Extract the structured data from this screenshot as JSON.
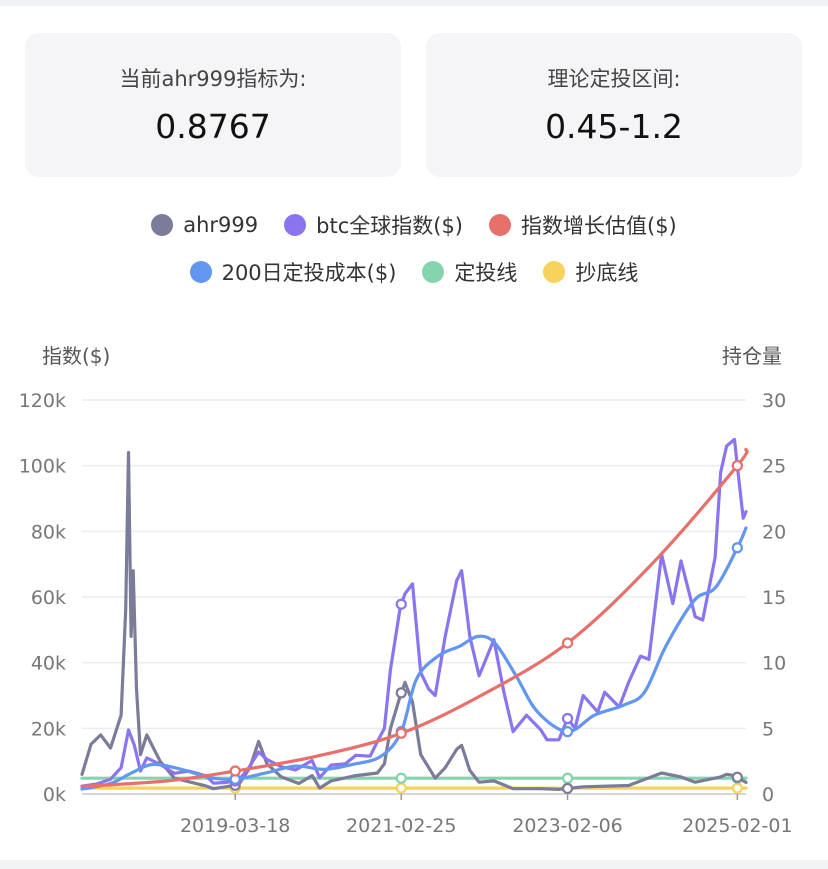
{
  "cards": {
    "index_label": "当前ahr999指标为:",
    "index_value": "0.8767",
    "range_label": "理论定投区间:",
    "range_value": "0.45-1.2"
  },
  "legend": {
    "row1": [
      {
        "label": "ahr999",
        "color": "#7b7b9a"
      },
      {
        "label": "btc全球指数($)",
        "color": "#8a74ef"
      },
      {
        "label": "指数增长估值($)",
        "color": "#e8706b"
      }
    ],
    "row2": [
      {
        "label": "200日定投成本($)",
        "color": "#6296f0"
      },
      {
        "label": "定投线",
        "color": "#86d4ae"
      },
      {
        "label": "抄底线",
        "color": "#f5d35c"
      }
    ]
  },
  "chart_data": {
    "type": "line",
    "left_axis_title": "指数($)",
    "right_axis_title": "持仓量",
    "left_ticks": [
      "0k",
      "20k",
      "40k",
      "60k",
      "80k",
      "100k",
      "120k"
    ],
    "right_ticks": [
      "0",
      "5",
      "10",
      "15",
      "20",
      "25",
      "30"
    ],
    "ylim_left": [
      0,
      120000
    ],
    "ylim_right": [
      0,
      30
    ],
    "x_ticks": [
      "2019-03-18",
      "2021-02-25",
      "2023-02-06",
      "2025-02-01"
    ],
    "x_range": [
      "2017-06-01",
      "2025-03-10"
    ],
    "grid": true,
    "series": [
      {
        "name": "btc全球指数($)",
        "axis": "left",
        "color": "#8a74ef",
        "points": [
          [
            "2017-06-01",
            2400
          ],
          [
            "2017-08-01",
            3000
          ],
          [
            "2017-10-01",
            4500
          ],
          [
            "2017-11-15",
            8000
          ],
          [
            "2017-12-17",
            19500
          ],
          [
            "2018-01-10",
            15000
          ],
          [
            "2018-02-06",
            7000
          ],
          [
            "2018-03-05",
            11000
          ],
          [
            "2018-05-01",
            9000
          ],
          [
            "2018-07-01",
            6300
          ],
          [
            "2018-09-01",
            7000
          ],
          [
            "2018-11-15",
            5500
          ],
          [
            "2018-12-15",
            3300
          ],
          [
            "2019-02-01",
            3500
          ],
          [
            "2019-04-01",
            4100
          ],
          [
            "2019-05-15",
            8000
          ],
          [
            "2019-06-26",
            12800
          ],
          [
            "2019-08-01",
            10500
          ],
          [
            "2019-10-01",
            8300
          ],
          [
            "2019-12-01",
            7300
          ],
          [
            "2020-02-10",
            10200
          ],
          [
            "2020-03-13",
            5000
          ],
          [
            "2020-05-01",
            8800
          ],
          [
            "2020-07-01",
            9200
          ],
          [
            "2020-08-15",
            11800
          ],
          [
            "2020-10-15",
            11500
          ],
          [
            "2020-11-15",
            16000
          ],
          [
            "2020-12-15",
            20000
          ],
          [
            "2021-01-10",
            38000
          ],
          [
            "2021-02-21",
            57000
          ],
          [
            "2021-03-13",
            61000
          ],
          [
            "2021-04-14",
            64000
          ],
          [
            "2021-05-19",
            37000
          ],
          [
            "2021-06-22",
            32000
          ],
          [
            "2021-07-20",
            30000
          ],
          [
            "2021-09-01",
            48000
          ],
          [
            "2021-10-20",
            65000
          ],
          [
            "2021-11-10",
            68000
          ],
          [
            "2021-12-15",
            48000
          ],
          [
            "2022-01-24",
            36000
          ],
          [
            "2022-03-28",
            47000
          ],
          [
            "2022-05-10",
            31000
          ],
          [
            "2022-06-18",
            19000
          ],
          [
            "2022-08-15",
            24000
          ],
          [
            "2022-10-15",
            19500
          ],
          [
            "2022-11-10",
            16500
          ],
          [
            "2022-12-31",
            16500
          ],
          [
            "2023-02-06",
            23000
          ],
          [
            "2023-03-10",
            20000
          ],
          [
            "2023-04-14",
            30000
          ],
          [
            "2023-06-15",
            25000
          ],
          [
            "2023-07-15",
            31000
          ],
          [
            "2023-09-15",
            26500
          ],
          [
            "2023-10-25",
            34000
          ],
          [
            "2023-12-15",
            42000
          ],
          [
            "2024-01-20",
            41000
          ],
          [
            "2024-03-14",
            73000
          ],
          [
            "2024-05-01",
            58000
          ],
          [
            "2024-06-05",
            71000
          ],
          [
            "2024-08-05",
            54000
          ],
          [
            "2024-09-06",
            53000
          ],
          [
            "2024-10-29",
            72000
          ],
          [
            "2024-11-22",
            98000
          ],
          [
            "2024-12-17",
            106000
          ],
          [
            "2025-01-20",
            108000
          ],
          [
            "2025-02-01",
            100000
          ],
          [
            "2025-02-26",
            84000
          ],
          [
            "2025-03-10",
            86000
          ]
        ]
      },
      {
        "name": "ahr999",
        "axis": "right",
        "color": "#7b7b9a",
        "points": [
          [
            "2017-06-01",
            1.5
          ],
          [
            "2017-07-10",
            3.8
          ],
          [
            "2017-08-20",
            4.5
          ],
          [
            "2017-10-01",
            3.5
          ],
          [
            "2017-11-15",
            6.0
          ],
          [
            "2017-12-05",
            14.0
          ],
          [
            "2017-12-17",
            26.0
          ],
          [
            "2017-12-28",
            12.0
          ],
          [
            "2018-01-06",
            17.0
          ],
          [
            "2018-01-20",
            8.0
          ],
          [
            "2018-02-06",
            3.0
          ],
          [
            "2018-03-05",
            4.5
          ],
          [
            "2018-05-01",
            2.5
          ],
          [
            "2018-07-01",
            1.2
          ],
          [
            "2018-11-15",
            0.6
          ],
          [
            "2018-12-15",
            0.4
          ],
          [
            "2019-04-01",
            0.7
          ],
          [
            "2019-05-20",
            2.0
          ],
          [
            "2019-06-26",
            4.0
          ],
          [
            "2019-08-01",
            2.3
          ],
          [
            "2019-10-01",
            1.3
          ],
          [
            "2019-12-15",
            0.8
          ],
          [
            "2020-02-10",
            1.4
          ],
          [
            "2020-03-13",
            0.45
          ],
          [
            "2020-05-01",
            1.0
          ],
          [
            "2020-08-15",
            1.4
          ],
          [
            "2020-11-15",
            1.6
          ],
          [
            "2020-12-15",
            2.3
          ],
          [
            "2021-01-10",
            5.0
          ],
          [
            "2021-02-21",
            7.5
          ],
          [
            "2021-03-13",
            8.5
          ],
          [
            "2021-04-14",
            7.0
          ],
          [
            "2021-05-19",
            3.0
          ],
          [
            "2021-07-20",
            1.2
          ],
          [
            "2021-09-01",
            2.0
          ],
          [
            "2021-10-20",
            3.4
          ],
          [
            "2021-11-10",
            3.7
          ],
          [
            "2021-12-15",
            1.8
          ],
          [
            "2022-01-24",
            0.9
          ],
          [
            "2022-03-28",
            1.0
          ],
          [
            "2022-06-18",
            0.4
          ],
          [
            "2022-10-15",
            0.4
          ],
          [
            "2022-12-31",
            0.35
          ],
          [
            "2023-04-14",
            0.55
          ],
          [
            "2023-10-25",
            0.65
          ],
          [
            "2024-03-14",
            1.6
          ],
          [
            "2024-06-05",
            1.3
          ],
          [
            "2024-08-05",
            0.9
          ],
          [
            "2024-11-22",
            1.3
          ],
          [
            "2024-12-17",
            1.5
          ],
          [
            "2025-01-20",
            1.4
          ],
          [
            "2025-03-10",
            0.88
          ]
        ]
      },
      {
        "name": "指数增长估值($)",
        "axis": "left",
        "color": "#e8706b",
        "points": [
          [
            "2017-06-01",
            2300
          ],
          [
            "2018-06-01",
            4000
          ],
          [
            "2019-03-18",
            7000
          ],
          [
            "2020-03-01",
            11500
          ],
          [
            "2021-02-25",
            18500
          ],
          [
            "2022-02-01",
            30000
          ],
          [
            "2023-02-06",
            46000
          ],
          [
            "2024-02-01",
            70000
          ],
          [
            "2025-02-01",
            100000
          ],
          [
            "2025-03-10",
            105000
          ]
        ]
      },
      {
        "name": "200日定投成本($)",
        "axis": "left",
        "color": "#6296f0",
        "points": [
          [
            "2017-06-01",
            1500
          ],
          [
            "2017-10-01",
            3200
          ],
          [
            "2018-01-01",
            6500
          ],
          [
            "2018-04-01",
            9000
          ],
          [
            "2018-08-01",
            7500
          ],
          [
            "2018-12-01",
            5000
          ],
          [
            "2019-03-18",
            4500
          ],
          [
            "2019-08-01",
            6500
          ],
          [
            "2019-12-01",
            8500
          ],
          [
            "2020-04-01",
            7500
          ],
          [
            "2020-08-01",
            9000
          ],
          [
            "2020-12-01",
            11500
          ],
          [
            "2021-02-25",
            19000
          ],
          [
            "2021-05-01",
            35000
          ],
          [
            "2021-08-01",
            42000
          ],
          [
            "2021-11-01",
            45000
          ],
          [
            "2022-01-20",
            48000
          ],
          [
            "2022-04-01",
            46000
          ],
          [
            "2022-07-01",
            36000
          ],
          [
            "2022-10-01",
            25000
          ],
          [
            "2023-02-06",
            19000
          ],
          [
            "2023-06-01",
            24000
          ],
          [
            "2023-10-01",
            27000
          ],
          [
            "2024-01-01",
            31000
          ],
          [
            "2024-04-01",
            45000
          ],
          [
            "2024-08-01",
            59000
          ],
          [
            "2024-11-01",
            63000
          ],
          [
            "2025-02-01",
            75000
          ],
          [
            "2025-03-10",
            81000
          ]
        ]
      },
      {
        "name": "定投线",
        "axis": "right",
        "color": "#86d4ae",
        "points": [
          [
            "2017-06-01",
            1.2
          ],
          [
            "2025-03-10",
            1.2
          ]
        ]
      },
      {
        "name": "抄底线",
        "axis": "right",
        "color": "#f5d35c",
        "points": [
          [
            "2017-06-01",
            0.45
          ],
          [
            "2025-03-10",
            0.45
          ]
        ]
      }
    ]
  }
}
